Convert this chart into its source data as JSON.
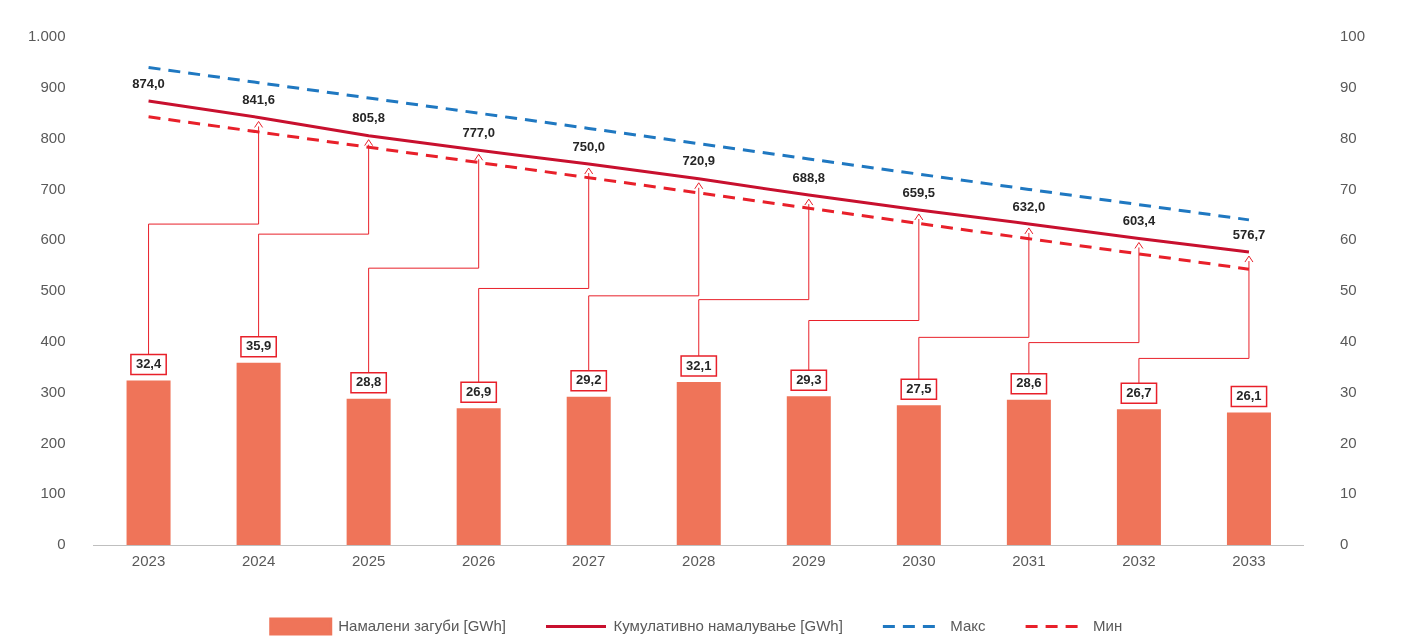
{
  "chart_data": {
    "type": "bar",
    "categories": [
      "2023",
      "2024",
      "2025",
      "2026",
      "2027",
      "2028",
      "2029",
      "2030",
      "2031",
      "2032",
      "2033"
    ],
    "series": [
      {
        "name": "Намалени загуби [GWh]",
        "axis": "y2",
        "color": "#ef7459",
        "values": [
          32.4,
          35.9,
          28.8,
          26.9,
          29.2,
          32.1,
          29.3,
          27.5,
          28.6,
          26.7,
          26.1
        ],
        "value_labels": [
          "32,4",
          "35,9",
          "28,8",
          "26,9",
          "29,2",
          "32,1",
          "29,3",
          "27,5",
          "28,6",
          "26,7",
          "26,1"
        ]
      },
      {
        "name": "Кумулативно намалување [GWh]",
        "type": "line",
        "color": "#c8102e",
        "line_style": "solid",
        "values": [
          874.0,
          841.6,
          805.8,
          777.0,
          750.0,
          720.9,
          688.8,
          659.5,
          632.0,
          603.4,
          576.7
        ],
        "value_labels": [
          "874,0",
          "841,6",
          "805,8",
          "777,0",
          "750,0",
          "720,9",
          "688,8",
          "659,5",
          "632,0",
          "603,4",
          "576,7"
        ]
      },
      {
        "name": "Макс",
        "type": "line",
        "color": "#1f78c1",
        "line_style": "dashed",
        "values": [
          940,
          910,
          880,
          850,
          820,
          790,
          760,
          730,
          700,
          670,
          640
        ]
      },
      {
        "name": "Мин",
        "type": "line",
        "color": "#e8202a",
        "line_style": "dashed",
        "values": [
          843,
          813,
          783,
          753,
          723,
          693,
          663,
          633,
          603,
          573,
          543
        ]
      }
    ],
    "ylim": [
      0,
      1000
    ],
    "yticks": [
      0,
      100,
      200,
      300,
      400,
      500,
      600,
      700,
      800,
      900,
      {
        "value": 1000,
        "label": "1.000"
      }
    ],
    "y2lim": [
      0,
      100
    ],
    "y2ticks": [
      0,
      10,
      20,
      30,
      40,
      50,
      60,
      70,
      80,
      90,
      100
    ],
    "grid": false,
    "legend": "bottom",
    "marker": "none"
  }
}
